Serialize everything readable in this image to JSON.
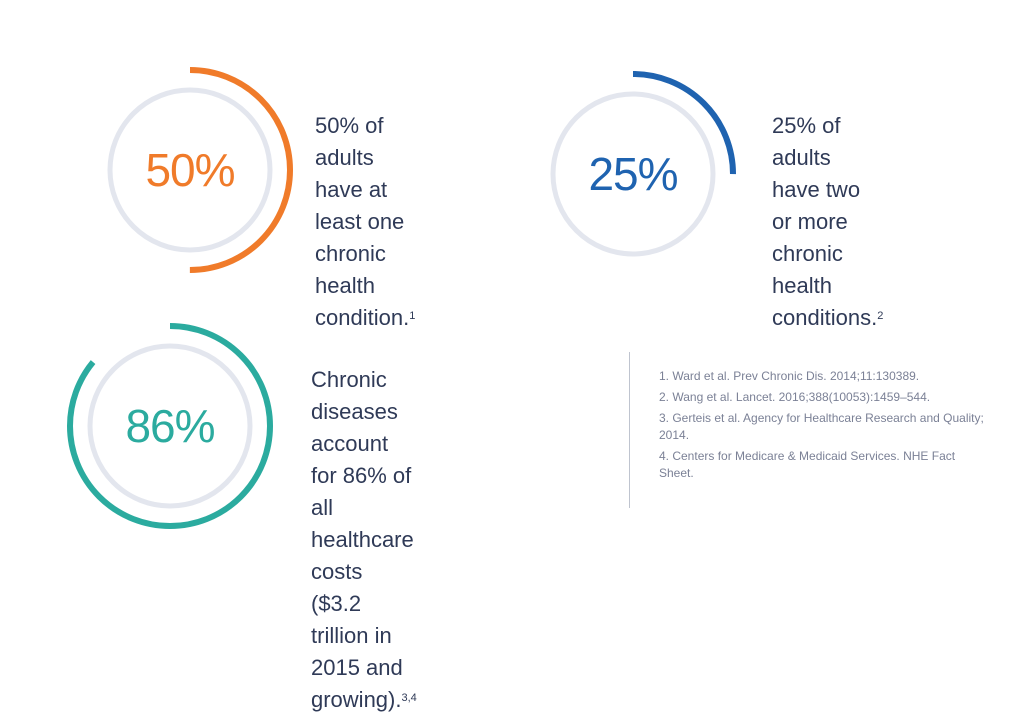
{
  "stats": [
    {
      "value_text": "50%",
      "fraction": 0.5,
      "color": "#f07b2a",
      "lines": [
        "50% of adults",
        "have at least one",
        "chronic health",
        "condition."
      ],
      "footnote": "1"
    },
    {
      "value_text": "25%",
      "fraction": 0.25,
      "color": "#1f63b0",
      "lines": [
        "25% of adults",
        "have two or more",
        "chronic health",
        "conditions."
      ],
      "footnote": "2"
    },
    {
      "value_text": "86%",
      "fraction": 0.86,
      "color": "#2bab9f",
      "lines": [
        "Chronic diseases account",
        "for 86% of all healthcare",
        "costs ($3.2 trillion in",
        "2015 and growing)."
      ],
      "footnote": "3,4"
    }
  ],
  "track_color": "#e3e6ee",
  "references": [
    "1. Ward et al. Prev Chronic Dis. 2014;11:130389.",
    "2. Wang et al. Lancet. 2016;388(10053):1459–544.",
    "3. Gerteis et al. Agency for Healthcare Research and Quality; 2014.",
    "4. Centers for Medicare & Medicaid Services. NHE Fact Sheet."
  ]
}
